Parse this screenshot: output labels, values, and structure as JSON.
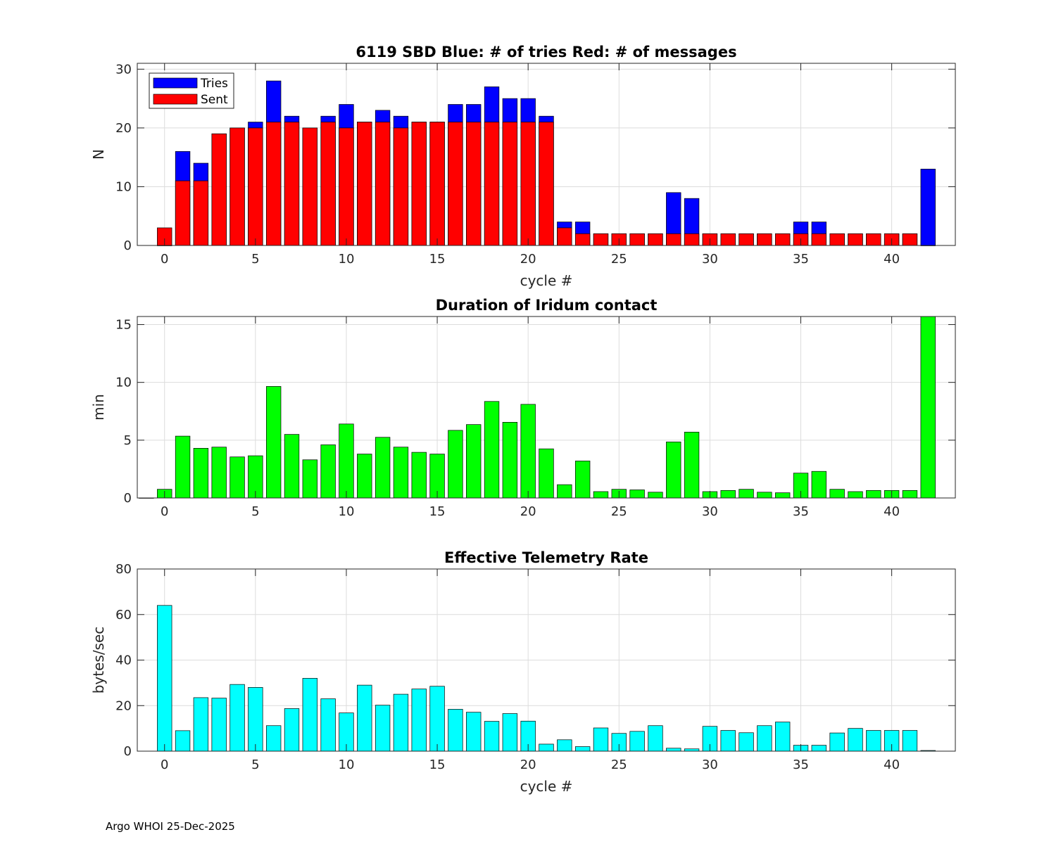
{
  "footer": "Argo WHOI 25-Dec-2025",
  "colors": {
    "tries": "#0000ff",
    "sent": "#ff0000",
    "duration": "#00ff00",
    "rate": "#00ffff",
    "grid": "#dcdcdc",
    "axis": "#262626"
  },
  "chart_data": [
    {
      "type": "bar",
      "title": "6119 SBD  Blue: # of tries   Red: # of messages",
      "xlabel": "cycle #",
      "ylabel": "N",
      "xlim": [
        -1.5,
        43.5
      ],
      "ylim": [
        0,
        31
      ],
      "xticks": [
        0,
        5,
        10,
        15,
        20,
        25,
        30,
        35,
        40
      ],
      "yticks": [
        0,
        10,
        20,
        30
      ],
      "legend": {
        "position": "top-left",
        "entries": [
          "Tries",
          "Sent"
        ]
      },
      "x": [
        0,
        1,
        2,
        3,
        4,
        5,
        6,
        7,
        8,
        9,
        10,
        11,
        12,
        13,
        14,
        15,
        16,
        17,
        18,
        19,
        20,
        21,
        22,
        23,
        24,
        25,
        26,
        27,
        28,
        29,
        30,
        31,
        32,
        33,
        34,
        35,
        36,
        37,
        38,
        39,
        40,
        41,
        42
      ],
      "series": [
        {
          "name": "Tries",
          "values": [
            0,
            16,
            14,
            19,
            20,
            21,
            28,
            22,
            20,
            22,
            24,
            21,
            23,
            22,
            21,
            21,
            24,
            24,
            27,
            25,
            25,
            22,
            4,
            4,
            2,
            2,
            2,
            2,
            9,
            8,
            2,
            2,
            2,
            2,
            2,
            4,
            4,
            2,
            2,
            2,
            2,
            2,
            13
          ]
        },
        {
          "name": "Sent",
          "values": [
            3,
            11,
            11,
            19,
            20,
            20,
            21,
            21,
            20,
            21,
            20,
            21,
            21,
            20,
            21,
            21,
            21,
            21,
            21,
            21,
            21,
            21,
            3,
            2,
            2,
            2,
            2,
            2,
            2,
            2,
            2,
            2,
            2,
            2,
            2,
            2,
            2,
            2,
            2,
            2,
            2,
            2,
            0
          ]
        }
      ]
    },
    {
      "type": "bar",
      "title": "Duration of Iridum contact",
      "xlabel": "",
      "ylabel": "min",
      "xlim": [
        -1.5,
        43.5
      ],
      "ylim": [
        0,
        15.7
      ],
      "xticks": [
        0,
        5,
        10,
        15,
        20,
        25,
        30,
        35,
        40
      ],
      "yticks": [
        0,
        5,
        10,
        15
      ],
      "x": [
        -1,
        0,
        1,
        2,
        3,
        4,
        5,
        6,
        7,
        8,
        9,
        10,
        11,
        12,
        13,
        14,
        15,
        16,
        17,
        18,
        19,
        20,
        21,
        22,
        23,
        24,
        25,
        26,
        27,
        28,
        29,
        30,
        31,
        32,
        33,
        34,
        35,
        36,
        37,
        38,
        39,
        40,
        41,
        42
      ],
      "values": [
        0,
        0.75,
        5.35,
        4.3,
        4.4,
        3.55,
        3.65,
        9.65,
        5.5,
        3.3,
        4.6,
        6.4,
        3.8,
        5.25,
        4.4,
        3.95,
        3.8,
        5.85,
        6.35,
        8.35,
        6.55,
        8.1,
        4.25,
        1.15,
        3.2,
        0.55,
        0.75,
        0.7,
        0.5,
        4.85,
        5.7,
        0.55,
        0.65,
        0.75,
        0.5,
        0.45,
        2.15,
        2.3,
        0.75,
        0.55,
        0.65,
        0.65,
        0.65,
        15.7
      ]
    },
    {
      "type": "bar",
      "title": "Effective Telemetry Rate",
      "xlabel": "cycle #",
      "ylabel": "bytes/sec",
      "xlim": [
        -1.5,
        43.5
      ],
      "ylim": [
        0,
        80
      ],
      "xticks": [
        0,
        5,
        10,
        15,
        20,
        25,
        30,
        35,
        40
      ],
      "yticks": [
        0,
        20,
        40,
        60,
        80
      ],
      "x": [
        0,
        1,
        2,
        3,
        4,
        5,
        6,
        7,
        8,
        9,
        10,
        11,
        12,
        13,
        14,
        15,
        16,
        17,
        18,
        19,
        20,
        21,
        22,
        23,
        24,
        25,
        26,
        27,
        28,
        29,
        30,
        31,
        32,
        33,
        34,
        35,
        36,
        37,
        38,
        39,
        40,
        41,
        42
      ],
      "values": [
        64,
        9,
        23.5,
        23.3,
        29.3,
        28,
        11.2,
        18.7,
        32,
        23,
        16.8,
        29,
        20.2,
        25,
        27.3,
        28.5,
        18.4,
        17.1,
        13.1,
        16.5,
        13.2,
        3.1,
        5,
        2,
        10.2,
        7.8,
        8.7,
        11.2,
        1.3,
        1,
        10.9,
        9.1,
        8.1,
        11.2,
        12.8,
        2.6,
        2.6,
        8,
        10,
        9.1,
        9.1,
        9.1,
        0.3
      ]
    }
  ]
}
